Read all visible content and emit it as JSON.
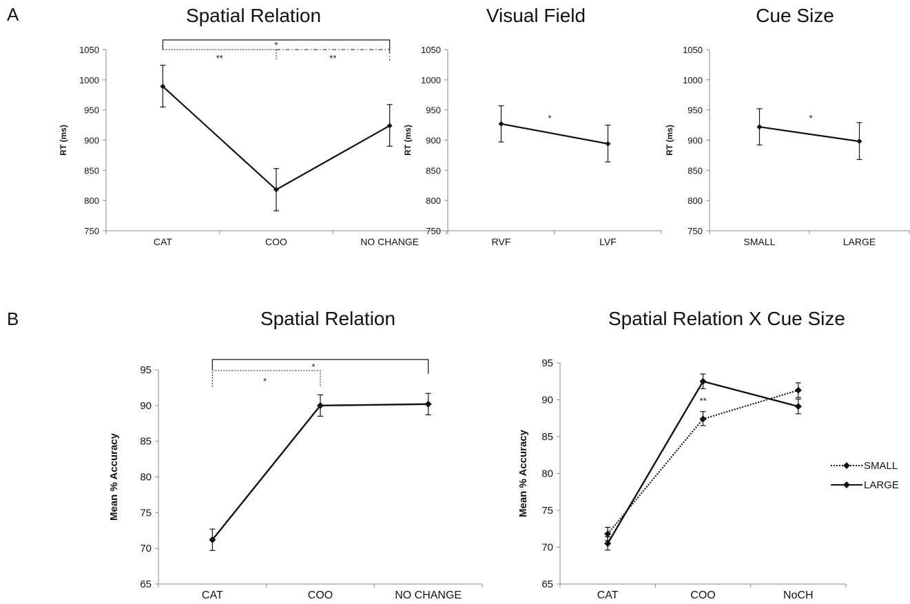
{
  "panel_labels": [
    "A",
    "B"
  ],
  "chart_data": [
    {
      "type": "line",
      "panel": "A",
      "title": "Spatial Relation",
      "ylabel": "RT (ms)",
      "xlabel": "",
      "ylim": [
        750,
        1050
      ],
      "yticks": [
        750,
        800,
        850,
        900,
        950,
        1000,
        1050
      ],
      "categories": [
        "CAT",
        "COO",
        "NO CHANGE"
      ],
      "series": [
        {
          "values": [
            989,
            818,
            924
          ],
          "err_low": [
            955,
            783,
            890
          ],
          "err_high": [
            1024,
            853,
            959
          ],
          "style": "solid"
        }
      ],
      "significance": [
        {
          "from": 0,
          "to": 2,
          "label": "*",
          "style": "solid"
        },
        {
          "from": 0,
          "to": 1,
          "label": "**",
          "style": "dotted"
        },
        {
          "from": 1,
          "to": 2,
          "label": "**",
          "style": "dashdot"
        }
      ]
    },
    {
      "type": "line",
      "panel": "A",
      "title": "Visual Field",
      "ylabel": "RT (ms)",
      "xlabel": "",
      "ylim": [
        750,
        1050
      ],
      "yticks": [
        750,
        800,
        850,
        900,
        950,
        1000,
        1050
      ],
      "categories": [
        "RVF",
        "LVF"
      ],
      "series": [
        {
          "values": [
            927,
            894
          ],
          "err_low": [
            897,
            864
          ],
          "err_high": [
            957,
            925
          ],
          "style": "solid"
        }
      ],
      "annotations": [
        {
          "label": "*"
        }
      ]
    },
    {
      "type": "line",
      "panel": "A",
      "title": "Cue Size",
      "ylabel": "RT (ms)",
      "xlabel": "",
      "ylim": [
        750,
        1050
      ],
      "yticks": [
        750,
        800,
        850,
        900,
        950,
        1000,
        1050
      ],
      "categories": [
        "SMALL",
        "LARGE"
      ],
      "series": [
        {
          "values": [
            922,
            898
          ],
          "err_low": [
            892,
            868
          ],
          "err_high": [
            952,
            929
          ],
          "style": "solid"
        }
      ],
      "annotations": [
        {
          "label": "*"
        }
      ]
    },
    {
      "type": "line",
      "panel": "B",
      "title": "Spatial Relation",
      "ylabel": "Mean % Accuracy",
      "xlabel": "",
      "ylim": [
        65,
        95
      ],
      "yticks": [
        65,
        70,
        75,
        80,
        85,
        90,
        95
      ],
      "categories": [
        "CAT",
        "COO",
        "NO CHANGE"
      ],
      "series": [
        {
          "values": [
            71.2,
            90.0,
            90.2
          ],
          "err_low": [
            69.7,
            88.5,
            88.7
          ],
          "err_high": [
            72.7,
            91.5,
            91.7
          ],
          "style": "solid"
        }
      ],
      "significance": [
        {
          "from": 0,
          "to": 2,
          "label": "*",
          "style": "solid"
        },
        {
          "from": 0,
          "to": 1,
          "label": "*",
          "style": "dotted"
        }
      ]
    },
    {
      "type": "line",
      "panel": "B",
      "title": "Spatial Relation X Cue Size",
      "ylabel": "Mean % Accuracy",
      "xlabel": "",
      "ylim": [
        65,
        95
      ],
      "yticks": [
        65,
        70,
        75,
        80,
        85,
        90,
        95
      ],
      "categories": [
        "CAT",
        "COO",
        "NoCH"
      ],
      "legend": {
        "position": "right"
      },
      "series": [
        {
          "name": "SMALL",
          "values": [
            71.8,
            87.4,
            91.3
          ],
          "err_low": [
            70.9,
            86.5,
            90.3
          ],
          "err_high": [
            72.7,
            88.4,
            92.3
          ],
          "style": "dotted"
        },
        {
          "name": "LARGE",
          "values": [
            70.5,
            92.5,
            89.1
          ],
          "err_low": [
            69.6,
            91.5,
            88.1
          ],
          "err_high": [
            71.4,
            93.5,
            90.1
          ],
          "style": "solid"
        }
      ],
      "annotations": [
        {
          "category": 1,
          "label": "**"
        }
      ]
    }
  ]
}
